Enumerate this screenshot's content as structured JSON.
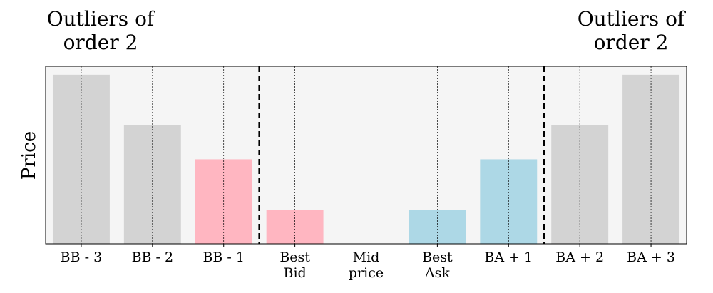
{
  "chart_data": {
    "type": "bar",
    "categories": [
      "BB - 3",
      "BB - 2",
      "BB - 1",
      "Best\nBid",
      "Mid\nprice",
      "Best\nAsk",
      "BA + 1",
      "BA + 2",
      "BA + 3"
    ],
    "values": [
      100,
      70,
      50,
      20,
      0,
      20,
      50,
      70,
      100
    ],
    "colors": [
      "#d3d3d3",
      "#d3d3d3",
      "#ffb6c1",
      "#ffb6c1",
      "#ffffff",
      "#add8e6",
      "#add8e6",
      "#d3d3d3",
      "#d3d3d3"
    ],
    "ylabel": "Price",
    "xlabel": "",
    "ylim": [
      0,
      105
    ],
    "grid": "vertical-dotted",
    "background": "#f5f5f5",
    "separators_between": [
      [
        2,
        3
      ],
      [
        6,
        7
      ]
    ],
    "annotations": {
      "left": "Outliers of\norder 2",
      "right": "Outliers of\norder 2"
    }
  }
}
